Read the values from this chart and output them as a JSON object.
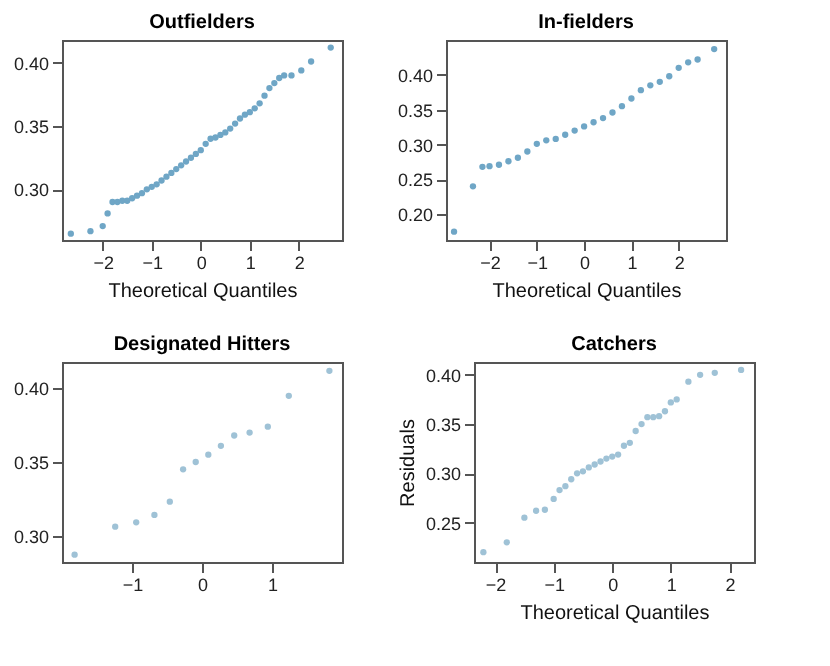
{
  "chart_data": [
    {
      "type": "scatter",
      "title": "Outfielders",
      "xlabel": "Theoretical Quantiles",
      "marker": "circle",
      "grid": false,
      "color": "#6fa6c6",
      "xlim": [
        -2.83,
        2.88
      ],
      "ylim": [
        0.26,
        0.418
      ],
      "xticks": [
        -2,
        -1,
        0,
        1,
        2
      ],
      "yticks": [
        {
          "value": 0.3,
          "label": "0.30"
        },
        {
          "value": 0.35,
          "label": "0.35"
        },
        {
          "value": 0.4,
          "label": "0.40"
        }
      ],
      "x": [
        -2.65,
        -2.25,
        -2.0,
        -1.9,
        -1.8,
        -1.7,
        -1.6,
        -1.5,
        -1.4,
        -1.3,
        -1.2,
        -1.1,
        -1.0,
        -0.9,
        -0.8,
        -0.7,
        -0.6,
        -0.5,
        -0.4,
        -0.3,
        -0.2,
        -0.1,
        0,
        0.1,
        0.2,
        0.3,
        0.4,
        0.5,
        0.6,
        0.7,
        0.8,
        0.9,
        1.0,
        1.1,
        1.2,
        1.3,
        1.4,
        1.5,
        1.6,
        1.7,
        1.85,
        2.05,
        2.25,
        2.65
      ],
      "values": [
        0.265,
        0.267,
        0.271,
        0.281,
        0.29,
        0.29,
        0.291,
        0.291,
        0.293,
        0.295,
        0.297,
        0.3,
        0.302,
        0.304,
        0.307,
        0.31,
        0.313,
        0.316,
        0.319,
        0.322,
        0.325,
        0.328,
        0.331,
        0.336,
        0.34,
        0.341,
        0.343,
        0.345,
        0.348,
        0.352,
        0.356,
        0.359,
        0.361,
        0.364,
        0.368,
        0.374,
        0.38,
        0.384,
        0.388,
        0.39,
        0.39,
        0.394,
        0.401,
        0.412
      ]
    },
    {
      "type": "scatter",
      "title": "In-fielders",
      "xlabel": "Theoretical Quantiles",
      "marker": "circle",
      "grid": false,
      "color": "#6fa6c6",
      "xlim": [
        -2.92,
        3.0
      ],
      "ylim": [
        0.163,
        0.45
      ],
      "xticks": [
        -2,
        -1,
        0,
        1,
        2
      ],
      "yticks": [
        {
          "value": 0.2,
          "label": "0.20"
        },
        {
          "value": 0.25,
          "label": "0.25"
        },
        {
          "value": 0.3,
          "label": "0.30"
        },
        {
          "value": 0.35,
          "label": "0.35"
        },
        {
          "value": 0.4,
          "label": "0.40"
        }
      ],
      "x": [
        -2.75,
        -2.35,
        -2.15,
        -2.0,
        -1.8,
        -1.6,
        -1.4,
        -1.2,
        -1.0,
        -0.8,
        -0.6,
        -0.4,
        -0.2,
        0,
        0.2,
        0.4,
        0.6,
        0.8,
        1.0,
        1.2,
        1.4,
        1.6,
        1.8,
        2.0,
        2.2,
        2.4,
        2.75
      ],
      "values": [
        0.175,
        0.24,
        0.268,
        0.269,
        0.271,
        0.276,
        0.281,
        0.29,
        0.301,
        0.306,
        0.308,
        0.314,
        0.32,
        0.326,
        0.332,
        0.338,
        0.346,
        0.355,
        0.366,
        0.378,
        0.385,
        0.39,
        0.398,
        0.41,
        0.418,
        0.422,
        0.437
      ]
    },
    {
      "type": "scatter",
      "title": "Designated Hitters",
      "marker": "circle",
      "grid": false,
      "color": "#9fc2d6",
      "xlim": [
        -2.0,
        2.0
      ],
      "ylim": [
        0.282,
        0.418
      ],
      "xticks": [
        -1,
        0,
        1
      ],
      "yticks": [
        {
          "value": 0.3,
          "label": "0.30"
        },
        {
          "value": 0.35,
          "label": "0.35"
        },
        {
          "value": 0.4,
          "label": "0.40"
        }
      ],
      "x": [
        -1.82,
        -1.24,
        -0.94,
        -0.68,
        -0.46,
        -0.27,
        -0.09,
        0.09,
        0.27,
        0.46,
        0.68,
        0.94,
        1.24,
        1.82
      ],
      "values": [
        0.287,
        0.306,
        0.309,
        0.314,
        0.323,
        0.345,
        0.35,
        0.355,
        0.361,
        0.368,
        0.37,
        0.374,
        0.395,
        0.412
      ]
    },
    {
      "type": "scatter",
      "title": "Catchers",
      "xlabel": "Theoretical Quantiles",
      "ylabel": "Residuals",
      "marker": "circle",
      "grid": false,
      "color": "#9fc2d6",
      "xlim": [
        -2.36,
        2.42
      ],
      "ylim": [
        0.21,
        0.413
      ],
      "xticks": [
        -2,
        -1,
        0,
        1,
        2
      ],
      "yticks": [
        {
          "value": 0.25,
          "label": "0.25"
        },
        {
          "value": 0.3,
          "label": "0.30"
        },
        {
          "value": 0.35,
          "label": "0.35"
        },
        {
          "value": 0.4,
          "label": "0.40"
        }
      ],
      "x": [
        -2.2,
        -1.8,
        -1.5,
        -1.3,
        -1.15,
        -1.0,
        -0.9,
        -0.8,
        -0.7,
        -0.6,
        -0.5,
        -0.4,
        -0.3,
        -0.2,
        -0.1,
        0,
        0.1,
        0.2,
        0.3,
        0.4,
        0.5,
        0.6,
        0.7,
        0.8,
        0.9,
        1.0,
        1.1,
        1.3,
        1.5,
        1.75,
        2.2
      ],
      "values": [
        0.22,
        0.23,
        0.255,
        0.262,
        0.263,
        0.274,
        0.283,
        0.287,
        0.294,
        0.3,
        0.302,
        0.306,
        0.309,
        0.312,
        0.315,
        0.317,
        0.319,
        0.328,
        0.331,
        0.343,
        0.35,
        0.357,
        0.357,
        0.358,
        0.363,
        0.372,
        0.375,
        0.393,
        0.4,
        0.402,
        0.405
      ]
    }
  ]
}
